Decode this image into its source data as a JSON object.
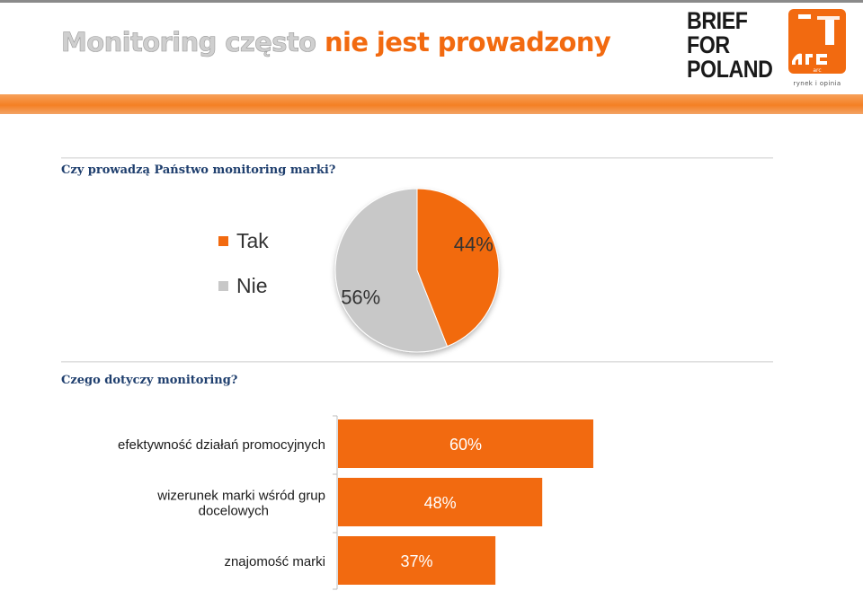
{
  "title": {
    "part1": "Monitoring często",
    "part2": "nie jest prowadzony"
  },
  "logos": {
    "brief": [
      "BRIEF",
      "FOR",
      "POLAND"
    ],
    "arc_wordmark": "arc",
    "arc_tagline": "rynek i opinia"
  },
  "colors": {
    "accent": "#f26a10",
    "pie_nie": "#c8c8c8",
    "question_text": "#1f3f6e"
  },
  "questions": {
    "q1": "Czy prowadzą Państwo monitoring marki?",
    "q2": "Czego dotyczy monitoring?"
  },
  "chart_data": [
    {
      "type": "pie",
      "categories": [
        "Tak",
        "Nie"
      ],
      "values": [
        44,
        56
      ],
      "labels": [
        "44%",
        "56%"
      ],
      "colors": [
        "#f26a10",
        "#c8c8c8"
      ],
      "legend_position": "left"
    },
    {
      "type": "bar",
      "orientation": "horizontal",
      "categories": [
        "efektywność działań promocyjnych",
        "wizerunek marki wśród grup docelowych",
        "znajomość marki"
      ],
      "values": [
        60,
        48,
        37
      ],
      "labels": [
        "60%",
        "48%",
        "37%"
      ],
      "xlim": [
        0,
        100
      ],
      "color": "#f26a10"
    }
  ]
}
